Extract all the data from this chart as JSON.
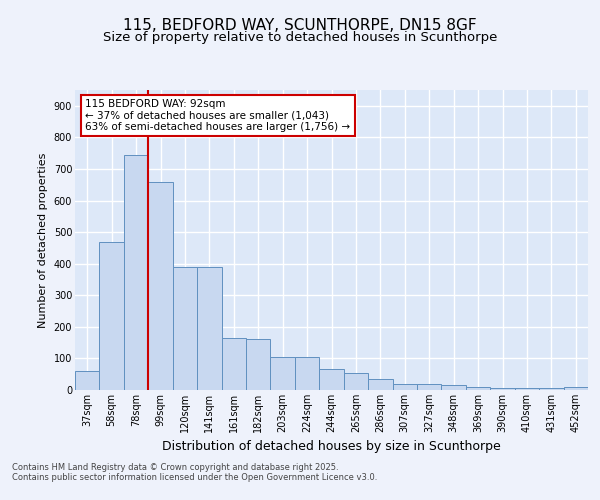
{
  "title_line1": "115, BEDFORD WAY, SCUNTHORPE, DN15 8GF",
  "title_line2": "Size of property relative to detached houses in Scunthorpe",
  "xlabel": "Distribution of detached houses by size in Scunthorpe",
  "ylabel": "Number of detached properties",
  "categories": [
    "37sqm",
    "58sqm",
    "78sqm",
    "99sqm",
    "120sqm",
    "141sqm",
    "161sqm",
    "182sqm",
    "203sqm",
    "224sqm",
    "244sqm",
    "265sqm",
    "286sqm",
    "307sqm",
    "327sqm",
    "348sqm",
    "369sqm",
    "390sqm",
    "410sqm",
    "431sqm",
    "452sqm"
  ],
  "values": [
    60,
    470,
    745,
    660,
    390,
    390,
    165,
    160,
    105,
    105,
    65,
    55,
    35,
    20,
    20,
    15,
    8,
    5,
    5,
    5,
    8
  ],
  "bar_color": "#c8d8f0",
  "bar_edge_color": "#6090c0",
  "background_color": "#dde8f8",
  "grid_color": "#ffffff",
  "annotation_text": "115 BEDFORD WAY: 92sqm\n← 37% of detached houses are smaller (1,043)\n63% of semi-detached houses are larger (1,756) →",
  "annotation_box_color": "#ffffff",
  "annotation_box_edge_color": "#cc0000",
  "ylim": [
    0,
    950
  ],
  "yticks": [
    0,
    100,
    200,
    300,
    400,
    500,
    600,
    700,
    800,
    900
  ],
  "fig_bg_color": "#eef2fb",
  "footer_line1": "Contains HM Land Registry data © Crown copyright and database right 2025.",
  "footer_line2": "Contains public sector information licensed under the Open Government Licence v3.0.",
  "title_fontsize": 11,
  "subtitle_fontsize": 9.5,
  "ylabel_fontsize": 8,
  "xlabel_fontsize": 9,
  "tick_fontsize": 7,
  "annot_fontsize": 7.5,
  "footer_fontsize": 6
}
